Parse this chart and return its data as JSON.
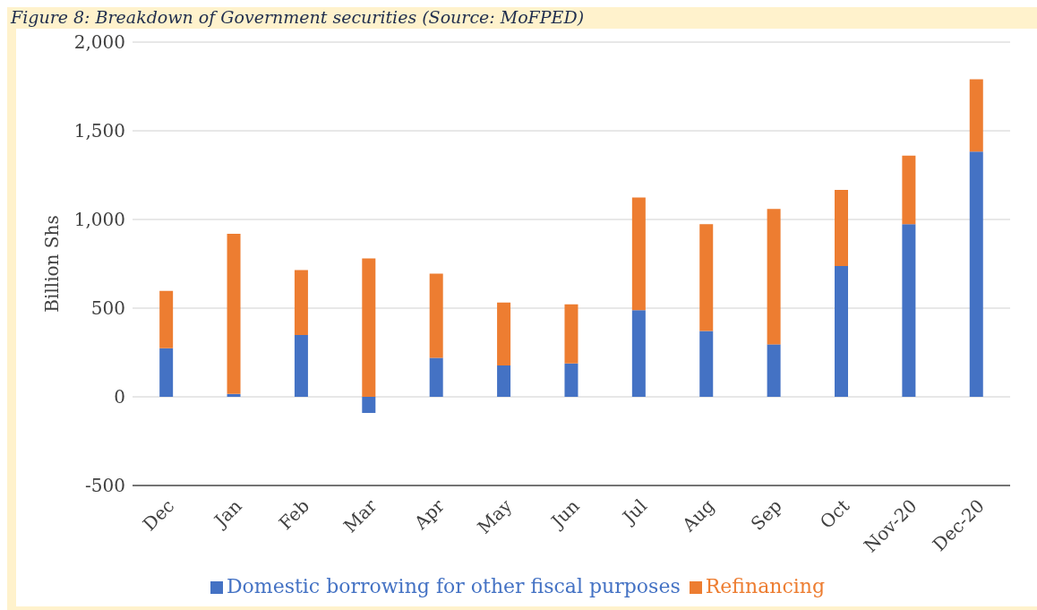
{
  "chart_data": {
    "type": "bar",
    "title": "Figure 8: Breakdown of Government securities (Source: MoFPED)",
    "ylabel": "Billion Shs",
    "stacked": true,
    "categories": [
      "Dec",
      "Jan",
      "Feb",
      "Mar",
      "Apr",
      "May",
      "Jun",
      "Jul",
      "Aug",
      "Sep",
      "Oct",
      "Nov-20",
      "Dec-20"
    ],
    "series": [
      {
        "name": "Domestic borrowing for other fiscal purposes",
        "color": "#4472c4",
        "values": [
          274,
          16,
          349,
          -91,
          220,
          177,
          188,
          489,
          371,
          296,
          737,
          973,
          1382
        ]
      },
      {
        "name": "Refinancing",
        "color": "#ed7d31",
        "values": [
          323,
          903,
          366,
          780,
          474,
          355,
          333,
          635,
          602,
          763,
          430,
          387,
          408
        ]
      }
    ],
    "ylim": [
      -500,
      2000
    ],
    "yticks": [
      {
        "value": -500,
        "label": "-500"
      },
      {
        "value": 0,
        "label": "0"
      },
      {
        "value": 500,
        "label": "500"
      },
      {
        "value": 1000,
        "label": "1,000"
      },
      {
        "value": 1500,
        "label": "1,500"
      },
      {
        "value": 2000,
        "label": "2,000"
      }
    ],
    "grid": "y",
    "legend": "bottom"
  }
}
